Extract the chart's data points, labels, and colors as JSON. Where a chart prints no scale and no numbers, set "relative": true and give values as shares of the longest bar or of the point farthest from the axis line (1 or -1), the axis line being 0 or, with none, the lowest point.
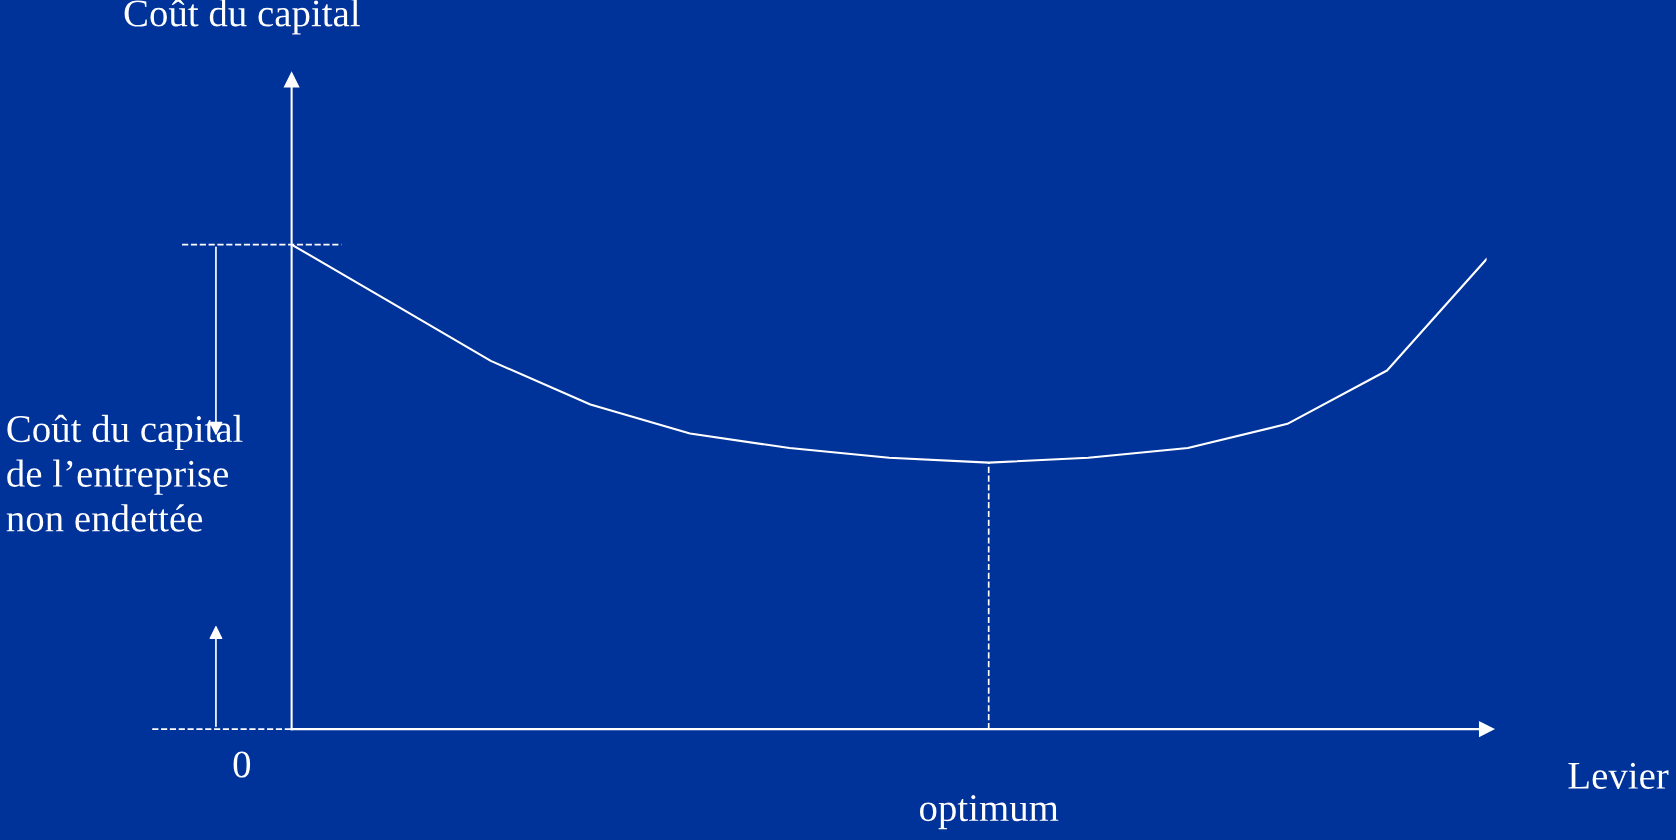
{
  "chart_data": {
    "type": "line",
    "relative": true,
    "xlabel": "Levier",
    "categories": [
      null,
      null,
      null,
      null,
      null,
      null,
      null,
      null,
      null,
      null,
      null,
      null,
      null
    ],
    "series": [
      {
        "color": "#ffffff",
        "values": [
          1,
          0.88,
          0.76,
          0.67,
          0.61,
          0.58,
          0.56,
          0.55,
          0.56,
          0.58,
          0.63,
          0.74,
          0.97
        ]
      }
    ],
    "annotations": [
      "Coût du capital",
      "0",
      "optimum",
      "Coût du capital\nde l’entreprise\nnon endettée"
    ],
    "grid": false,
    "legend": false,
    "marker": "none",
    "line_style": "solid"
  }
}
